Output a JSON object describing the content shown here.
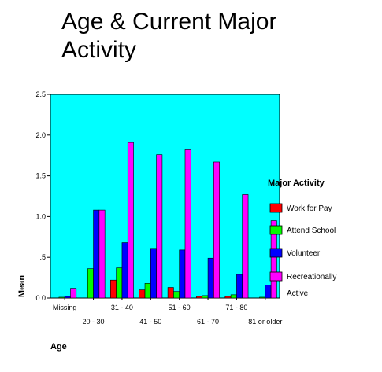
{
  "chart_data": {
    "type": "bar",
    "title": "Age & Current Major Activity",
    "xlabel": "Age",
    "ylabel": "Mean",
    "ylim": [
      0,
      2.5
    ],
    "yticks": [
      "0.0",
      ".5",
      "1.0",
      "1.5",
      "2.0",
      "2.5"
    ],
    "grid": false,
    "legend_title": "Major Activity",
    "legend_position": "right",
    "categories": [
      "Missing",
      "20 - 30",
      "31 - 40",
      "41 - 50",
      "51 - 60",
      "61 - 70",
      "71 - 80",
      "81 or older"
    ],
    "series": [
      {
        "name": "Work for Pay",
        "color": "#ff0000",
        "values": [
          0.0,
          0.0,
          0.22,
          0.1,
          0.13,
          0.02,
          0.02,
          0.0
        ]
      },
      {
        "name": "Attend School",
        "color": "#00ff00",
        "values": [
          0.01,
          0.36,
          0.37,
          0.18,
          0.08,
          0.03,
          0.04,
          0.01
        ]
      },
      {
        "name": "Volunteer",
        "color": "#0000ff",
        "values": [
          0.02,
          1.08,
          0.68,
          0.61,
          0.59,
          0.49,
          0.29,
          0.16
        ]
      },
      {
        "name": "Recreationally Active",
        "color": "#ff00ff",
        "values": [
          0.12,
          1.08,
          1.91,
          1.76,
          1.82,
          1.67,
          1.27,
          0.95
        ]
      }
    ],
    "plot_background": "#00ffff"
  }
}
